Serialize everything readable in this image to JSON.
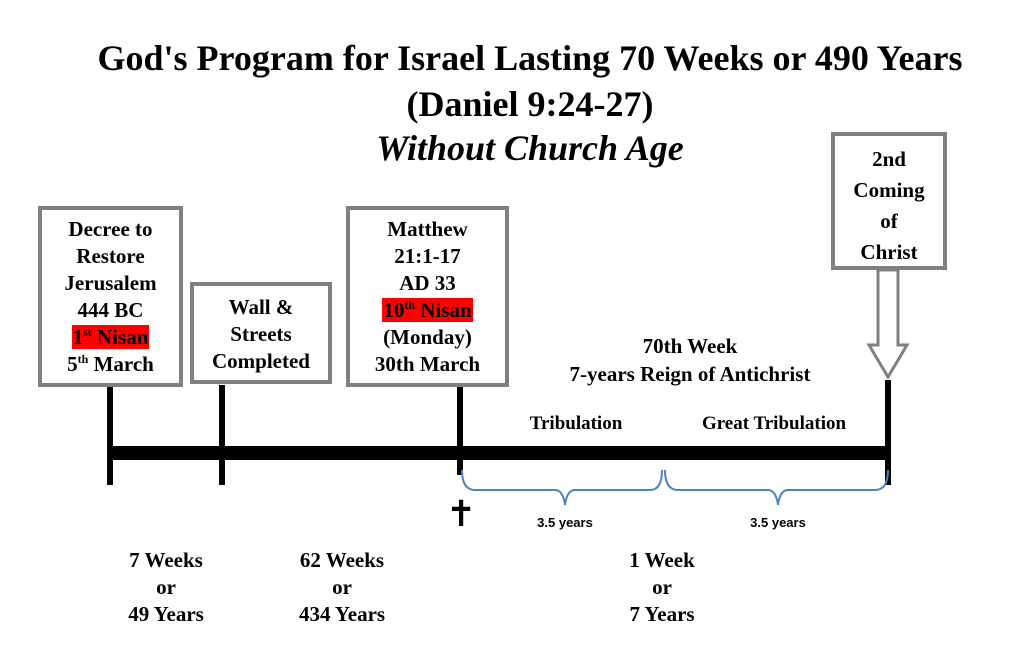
{
  "title": {
    "line1": "God's Program for Israel Lasting 70 Weeks or 490 Years",
    "line2": "(Daniel 9:24-27)",
    "line3": "Without Church Age"
  },
  "boxes": {
    "decree": {
      "l1": "Decree to",
      "l2": "Restore",
      "l3": "Jerusalem",
      "l4": "444 BC",
      "l5_num": "1",
      "l5_sup": "st",
      "l5_text": " Nisan",
      "l6_num": "5",
      "l6_sup": "th",
      "l6_text": " March"
    },
    "wall": {
      "l1": "Wall &",
      "l2": "Streets",
      "l3": "Completed"
    },
    "matthew": {
      "l1": "Matthew",
      "l2": "21:1-17",
      "l3": "AD 33",
      "l4_num": "10",
      "l4_sup": "th",
      "l4_text": " Nisan",
      "l5": "(Monday)",
      "l6": "30th March"
    },
    "coming": {
      "l1": "2nd",
      "l2": "Coming",
      "l3": "of",
      "l4": "Christ"
    }
  },
  "week70": {
    "l1": "70th Week",
    "l2": "7-years Reign of Antichrist"
  },
  "tribulation": "Tribulation",
  "great_tribulation": "Great Tribulation",
  "half1": "3.5 years",
  "half2": "3.5 years",
  "cross": "✝",
  "periods": {
    "p1": {
      "l1": "7 Weeks",
      "l2": "or",
      "l3": "49 Years"
    },
    "p2": {
      "l1": "62 Weeks",
      "l2": "or",
      "l3": "434 Years"
    },
    "p3": {
      "l1": "1 Week",
      "l2": "or",
      "l3": "7 Years"
    }
  },
  "colors": {
    "box_border": "#808080",
    "highlight": "#ff0000",
    "brace": "#4f81bd",
    "timeline": "#000000"
  }
}
